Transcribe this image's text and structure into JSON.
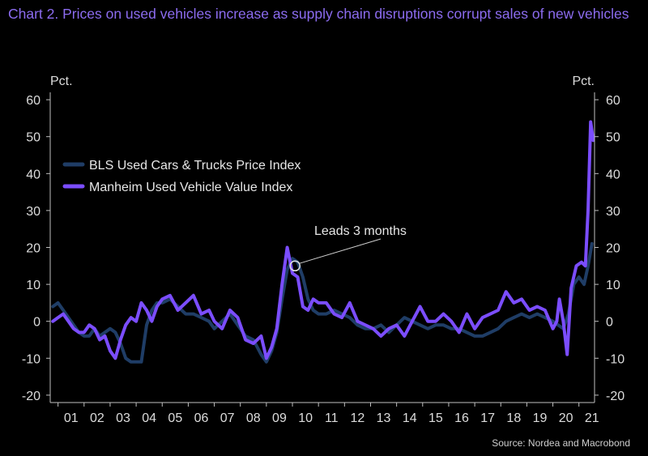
{
  "title": "Chart 2. Prices on used vehicles increase as supply chain disruptions corrupt sales of new vehicles",
  "source": "Source: Nordea and Macrobond",
  "chart_data": {
    "type": "line",
    "title": "Chart 2. Prices on used vehicles increase as supply chain disruptions corrupt sales of new vehicles",
    "ylabel_left": "Pct.",
    "ylabel_right": "Pct.",
    "ylim": [
      -22,
      62
    ],
    "yticks": [
      -20,
      -10,
      0,
      10,
      20,
      30,
      40,
      50,
      60
    ],
    "xlim": [
      2000.7,
      2021.6
    ],
    "xticks": [
      {
        "value": 2001.5,
        "label": "01"
      },
      {
        "value": 2002.5,
        "label": "02"
      },
      {
        "value": 2003.5,
        "label": "03"
      },
      {
        "value": 2004.5,
        "label": "04"
      },
      {
        "value": 2005.5,
        "label": "05"
      },
      {
        "value": 2006.5,
        "label": "06"
      },
      {
        "value": 2007.5,
        "label": "07"
      },
      {
        "value": 2008.5,
        "label": "08"
      },
      {
        "value": 2009.5,
        "label": "09"
      },
      {
        "value": 2010.5,
        "label": "10"
      },
      {
        "value": 2011.5,
        "label": "11"
      },
      {
        "value": 2012.5,
        "label": "12"
      },
      {
        "value": 2013.5,
        "label": "13"
      },
      {
        "value": 2014.5,
        "label": "14"
      },
      {
        "value": 2015.5,
        "label": "15"
      },
      {
        "value": 2016.5,
        "label": "16"
      },
      {
        "value": 2017.5,
        "label": "17"
      },
      {
        "value": 2018.5,
        "label": "18"
      },
      {
        "value": 2019.5,
        "label": "19"
      },
      {
        "value": 2020.5,
        "label": "20"
      },
      {
        "value": 2021.5,
        "label": "21"
      }
    ],
    "legend_position": "top-left",
    "annotation": {
      "text": "Leads 3 months",
      "x": 2010.1,
      "y": 15
    },
    "series": [
      {
        "name": "BLS Used Cars & Trucks Price Index",
        "color": "#1f3d66",
        "x": [
          2000.8,
          2001.0,
          2001.2,
          2001.4,
          2001.6,
          2001.8,
          2002.0,
          2002.2,
          2002.4,
          2002.6,
          2002.8,
          2003.0,
          2003.2,
          2003.4,
          2003.6,
          2003.8,
          2004.0,
          2004.2,
          2004.4,
          2004.6,
          2004.8,
          2005.0,
          2005.3,
          2005.6,
          2005.9,
          2006.2,
          2006.5,
          2006.8,
          2007.0,
          2007.3,
          2007.6,
          2007.9,
          2008.2,
          2008.5,
          2008.8,
          2009.0,
          2009.2,
          2009.4,
          2009.6,
          2009.8,
          2010.0,
          2010.2,
          2010.4,
          2010.6,
          2010.8,
          2011.0,
          2011.3,
          2011.6,
          2011.9,
          2012.2,
          2012.5,
          2012.8,
          2013.1,
          2013.4,
          2013.7,
          2014.0,
          2014.3,
          2014.6,
          2014.9,
          2015.2,
          2015.5,
          2015.8,
          2016.1,
          2016.4,
          2016.7,
          2017.0,
          2017.3,
          2017.6,
          2017.9,
          2018.2,
          2018.5,
          2018.8,
          2019.1,
          2019.4,
          2019.7,
          2020.0,
          2020.2,
          2020.4,
          2020.6,
          2020.8,
          2021.0,
          2021.2,
          2021.35,
          2021.5
        ],
        "values": [
          4,
          5,
          3,
          1,
          -1,
          -3,
          -4,
          -4,
          -2,
          -4,
          -3,
          -2,
          -3,
          -6,
          -10,
          -11,
          -11,
          -11,
          -1,
          3,
          5,
          5,
          6,
          4,
          2,
          2,
          1,
          0,
          -2,
          0,
          2,
          -1,
          -4,
          -5,
          -9,
          -11,
          -8,
          -3,
          6,
          14,
          17,
          16,
          12,
          6,
          3,
          2,
          2,
          3,
          2,
          1,
          -1,
          -2,
          -2,
          -1,
          -3,
          -1,
          1,
          0,
          -1,
          -2,
          -1,
          -1,
          -2,
          -2,
          -3,
          -4,
          -4,
          -3,
          -2,
          0,
          1,
          2,
          1,
          2,
          1,
          0,
          -1,
          -2,
          2,
          10,
          12,
          10,
          15,
          21
        ]
      },
      {
        "name": "Manheim Used Vehicle Value Index",
        "color": "#7b4dff",
        "x": [
          2000.8,
          2001.0,
          2001.2,
          2001.4,
          2001.6,
          2001.8,
          2002.0,
          2002.2,
          2002.4,
          2002.6,
          2002.8,
          2003.0,
          2003.2,
          2003.4,
          2003.6,
          2003.8,
          2004.0,
          2004.2,
          2004.4,
          2004.6,
          2004.8,
          2005.0,
          2005.3,
          2005.6,
          2005.9,
          2006.2,
          2006.5,
          2006.8,
          2007.0,
          2007.3,
          2007.6,
          2007.9,
          2008.2,
          2008.5,
          2008.8,
          2009.0,
          2009.2,
          2009.4,
          2009.6,
          2009.8,
          2010.0,
          2010.2,
          2010.4,
          2010.6,
          2010.8,
          2011.0,
          2011.3,
          2011.6,
          2011.9,
          2012.2,
          2012.5,
          2012.8,
          2013.1,
          2013.4,
          2013.7,
          2014.0,
          2014.3,
          2014.6,
          2014.9,
          2015.2,
          2015.5,
          2015.8,
          2016.1,
          2016.4,
          2016.7,
          2017.0,
          2017.3,
          2017.6,
          2017.9,
          2018.2,
          2018.5,
          2018.8,
          2019.1,
          2019.4,
          2019.7,
          2020.0,
          2020.15,
          2020.25,
          2020.4,
          2020.55,
          2020.7,
          2020.9,
          2021.1,
          2021.25,
          2021.35,
          2021.45,
          2021.55
        ],
        "values": [
          0,
          1,
          2,
          0,
          -2,
          -3,
          -3,
          -1,
          -2,
          -5,
          -4,
          -8,
          -10,
          -5,
          -1,
          1,
          0,
          5,
          3,
          0,
          4,
          6,
          7,
          3,
          5,
          7,
          2,
          3,
          0,
          -2,
          3,
          1,
          -5,
          -6,
          -4,
          -10,
          -7,
          -2,
          10,
          20,
          13,
          12,
          4,
          3,
          6,
          5,
          5,
          2,
          1,
          5,
          0,
          -1,
          -2,
          -4,
          -2,
          -1,
          -4,
          0,
          4,
          0,
          0,
          2,
          0,
          -3,
          2,
          -2,
          1,
          2,
          3,
          8,
          5,
          6,
          3,
          4,
          3,
          -2,
          0,
          6,
          0,
          -9,
          9,
          15,
          16,
          15,
          30,
          54,
          49
        ]
      }
    ]
  }
}
